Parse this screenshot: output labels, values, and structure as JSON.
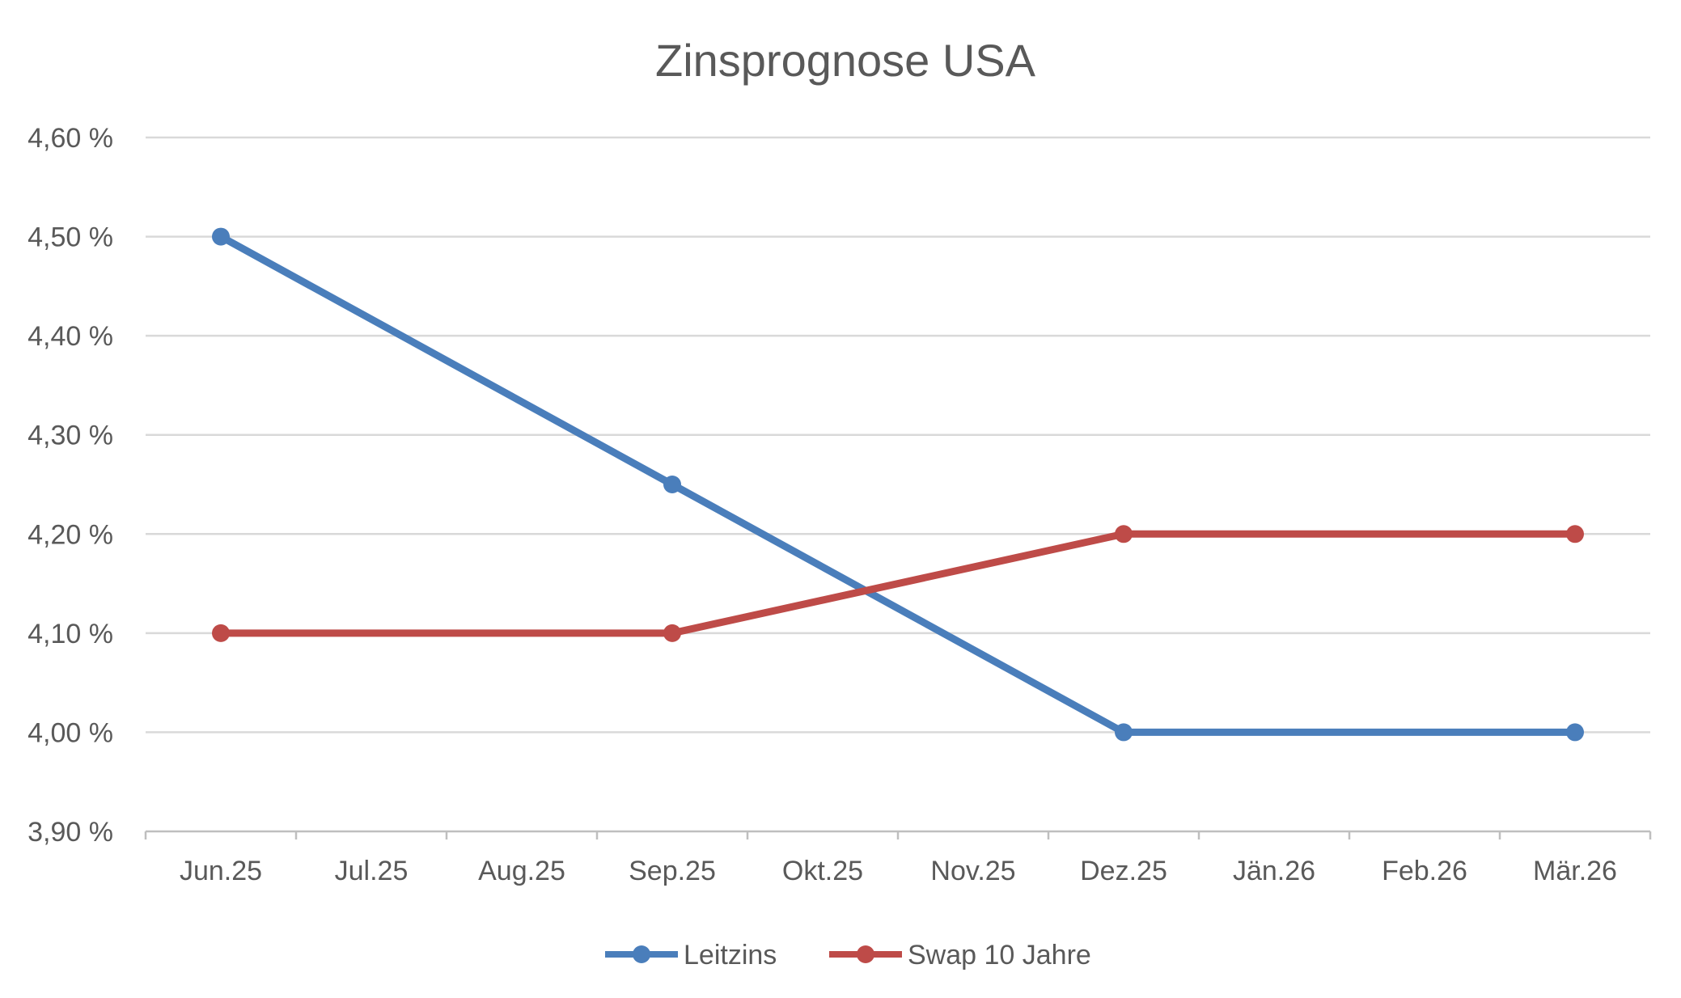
{
  "chart_data": {
    "type": "line",
    "title": "Zinsprognose USA",
    "xlabel": "",
    "ylabel": "",
    "categories": [
      "Jun.25",
      "Jul.25",
      "Aug.25",
      "Sep.25",
      "Okt.25",
      "Nov.25",
      "Dez.25",
      "Jän.26",
      "Feb.26",
      "Mär.26"
    ],
    "y_ticks": [
      3.9,
      4.0,
      4.1,
      4.2,
      4.3,
      4.4,
      4.5,
      4.6
    ],
    "y_tick_labels": [
      "3,90 %",
      "4,00 %",
      "4,10 %",
      "4,20 %",
      "4,30 %",
      "4,40 %",
      "4,50 %",
      "4,60 %"
    ],
    "ylim": [
      3.9,
      4.6
    ],
    "grid": true,
    "legend_position": "bottom",
    "series": [
      {
        "name": "Leitzins",
        "color": "#4a7ebb",
        "points": [
          {
            "category": "Jun.25",
            "value": 4.5
          },
          {
            "category": "Sep.25",
            "value": 4.25
          },
          {
            "category": "Dez.25",
            "value": 4.0
          },
          {
            "category": "Mär.26",
            "value": 4.0
          }
        ]
      },
      {
        "name": "Swap 10 Jahre",
        "color": "#be4b48",
        "points": [
          {
            "category": "Jun.25",
            "value": 4.1
          },
          {
            "category": "Sep.25",
            "value": 4.1
          },
          {
            "category": "Dez.25",
            "value": 4.2
          },
          {
            "category": "Mär.26",
            "value": 4.2
          }
        ]
      }
    ]
  }
}
